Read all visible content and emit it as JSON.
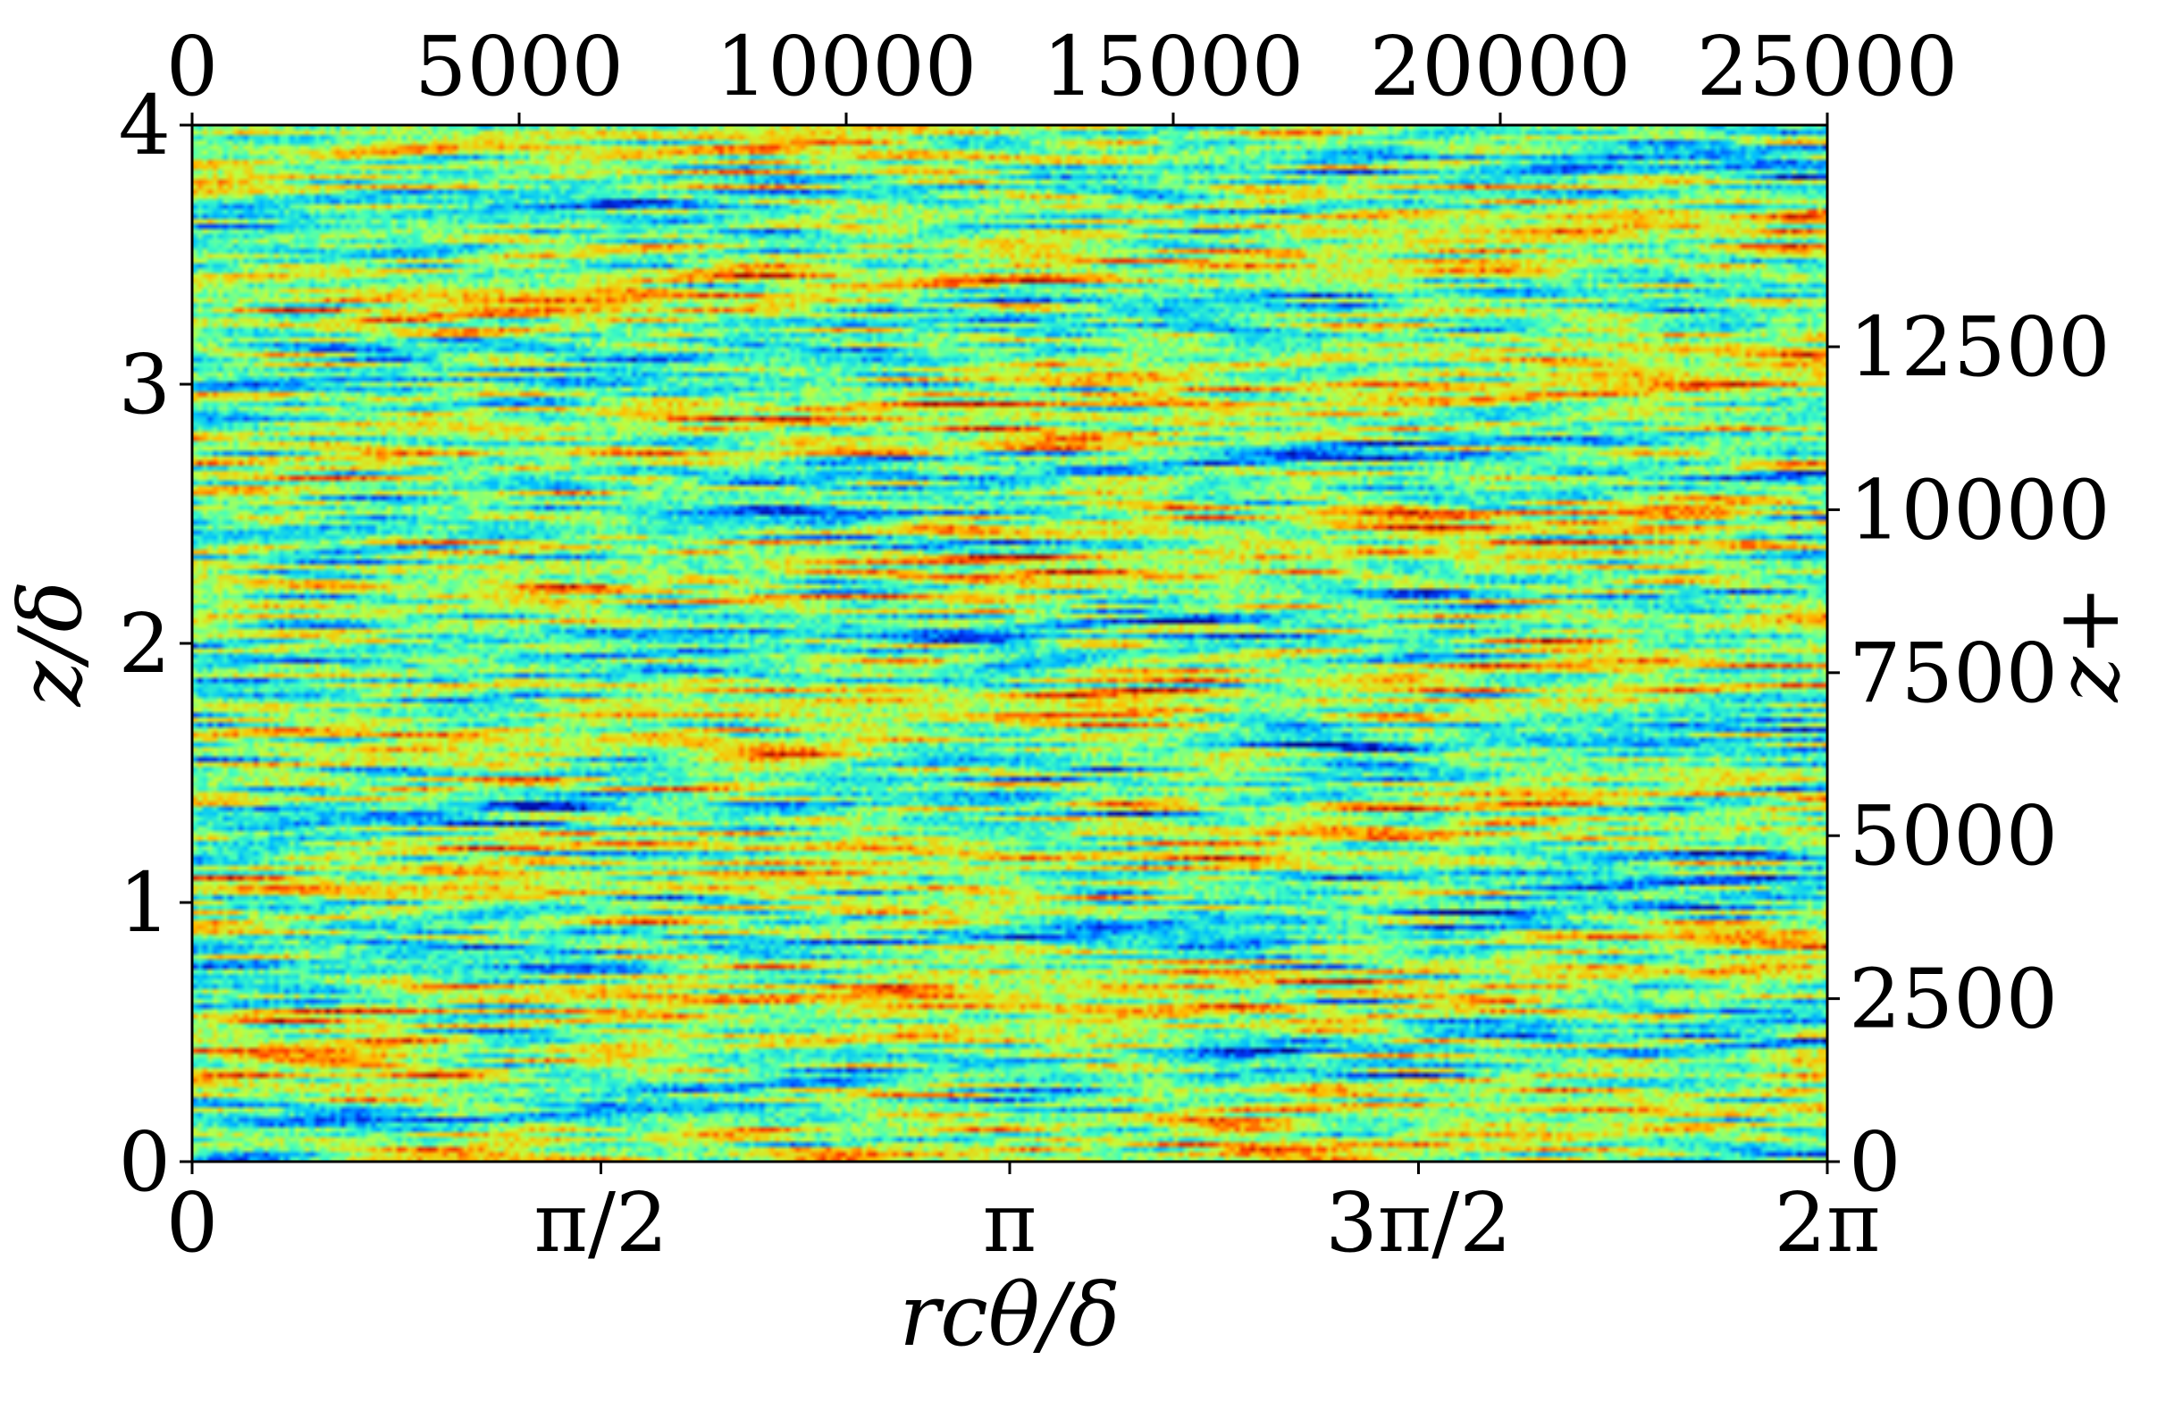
{
  "chart_data": {
    "type": "heatmap",
    "title": "",
    "colormap": "jet",
    "colormap_colors": [
      "#00008f",
      "#0040ff",
      "#00c0ff",
      "#40ffbf",
      "#bfff40",
      "#ffc000",
      "#ff4000",
      "#a00000"
    ],
    "x": {
      "label": "r_cθ/δ",
      "label_display": "rcθ/δ",
      "range": [
        0,
        6.2832
      ],
      "ticks": [
        {
          "value": 0,
          "label": "0"
        },
        {
          "value": 1.5708,
          "label": "π/2"
        },
        {
          "value": 3.1416,
          "label": "π"
        },
        {
          "value": 4.7124,
          "label": "3π/2"
        },
        {
          "value": 6.2832,
          "label": "2π"
        }
      ]
    },
    "x_top": {
      "label": "",
      "range": [
        0,
        25000
      ],
      "ticks": [
        {
          "value": 0,
          "label": "0"
        },
        {
          "value": 5000,
          "label": "5000"
        },
        {
          "value": 10000,
          "label": "10000"
        },
        {
          "value": 15000,
          "label": "15000"
        },
        {
          "value": 20000,
          "label": "20000"
        },
        {
          "value": 25000,
          "label": "25000"
        }
      ]
    },
    "y": {
      "label": "z/δ",
      "range": [
        0,
        4
      ],
      "ticks": [
        {
          "value": 0,
          "label": "0"
        },
        {
          "value": 1,
          "label": "1"
        },
        {
          "value": 2,
          "label": "2"
        },
        {
          "value": 3,
          "label": "3"
        },
        {
          "value": 4,
          "label": "4"
        }
      ]
    },
    "y_right": {
      "label": "z+",
      "label_display": "z+",
      "range": [
        0,
        15900
      ],
      "ticks": [
        {
          "value": 0,
          "label": "0"
        },
        {
          "value": 2500,
          "label": "2500"
        },
        {
          "value": 5000,
          "label": "5000"
        },
        {
          "value": 7500,
          "label": "7500"
        },
        {
          "value": 10000,
          "label": "10000"
        },
        {
          "value": 12500,
          "label": "12500"
        }
      ]
    },
    "grid": false,
    "legend": "none"
  }
}
